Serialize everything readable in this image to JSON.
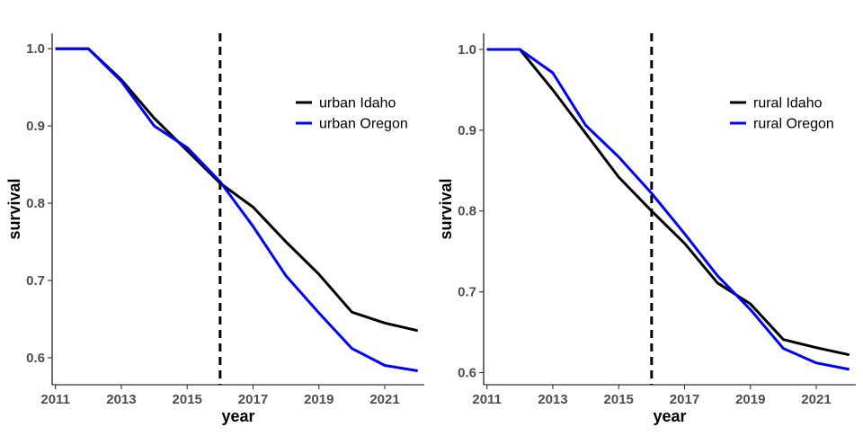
{
  "chart_data": [
    {
      "type": "line",
      "title": "",
      "xlabel": "year",
      "ylabel": "survival",
      "xlim": [
        2010.9,
        2022.2
      ],
      "ylim": [
        0.565,
        1.02
      ],
      "xticks": [
        2011,
        2013,
        2015,
        2017,
        2019,
        2021
      ],
      "yticks": [
        0.6,
        0.7,
        0.8,
        0.9,
        1.0
      ],
      "ytick_labels": [
        "0.6",
        "0.7",
        "0.8",
        "0.9",
        "1.0"
      ],
      "vline": 2016,
      "legend": "right",
      "x": [
        2011,
        2012,
        2013,
        2014,
        2015,
        2016,
        2017,
        2018,
        2019,
        2020,
        2021,
        2022
      ],
      "series": [
        {
          "name": "urban Idaho",
          "color": "#000000",
          "values": [
            1.0,
            1.0,
            0.96,
            0.91,
            0.868,
            0.826,
            0.795,
            0.75,
            0.708,
            0.659,
            0.645,
            0.635
          ]
        },
        {
          "name": "urban Oregon",
          "color": "#0000ff",
          "values": [
            1.0,
            1.0,
            0.958,
            0.9,
            0.872,
            0.828,
            0.77,
            0.706,
            0.658,
            0.612,
            0.59,
            0.583
          ]
        }
      ]
    },
    {
      "type": "line",
      "title": "",
      "xlabel": "year",
      "ylabel": "survival",
      "xlim": [
        2010.9,
        2022.2
      ],
      "ylim": [
        0.585,
        1.02
      ],
      "xticks": [
        2011,
        2013,
        2015,
        2017,
        2019,
        2021
      ],
      "yticks": [
        0.6,
        0.7,
        0.8,
        0.9,
        1.0
      ],
      "ytick_labels": [
        "0.6",
        "0.7",
        "0.8",
        "0.9",
        "1.0"
      ],
      "vline": 2016,
      "legend": "right",
      "x": [
        2011,
        2012,
        2013,
        2014,
        2015,
        2016,
        2017,
        2018,
        2019,
        2020,
        2021,
        2022
      ],
      "series": [
        {
          "name": "rural Idaho",
          "color": "#000000",
          "values": [
            1.0,
            1.0,
            0.95,
            0.896,
            0.842,
            0.8,
            0.76,
            0.711,
            0.685,
            0.641,
            0.631,
            0.622
          ]
        },
        {
          "name": "rural Oregon",
          "color": "#0000ff",
          "values": [
            1.0,
            1.0,
            0.971,
            0.906,
            0.867,
            0.822,
            0.772,
            0.72,
            0.678,
            0.63,
            0.612,
            0.604
          ]
        }
      ]
    }
  ]
}
